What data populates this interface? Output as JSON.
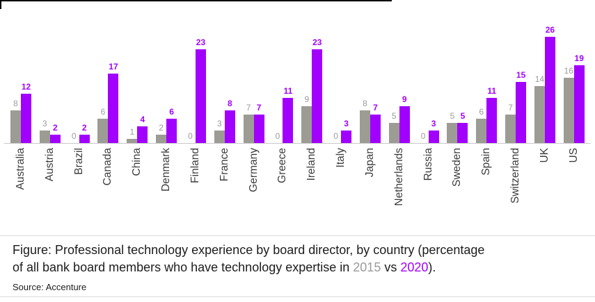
{
  "chart_data": {
    "type": "bar",
    "title": "",
    "xlabel": "",
    "ylabel": "",
    "categories": [
      "Australia",
      "Austria",
      "Brazil",
      "Canada",
      "China",
      "Denmark",
      "Finland",
      "France",
      "Germany",
      "Greece",
      "Ireland",
      "Italy",
      "Japan",
      "Netherlands",
      "Russia",
      "Sweden",
      "Spain",
      "Switzerland",
      "UK",
      "US"
    ],
    "series": [
      {
        "name": "2015",
        "color": "#9c9c94",
        "label_color": "#9b9b9b",
        "values": [
          8,
          3,
          0,
          6,
          1,
          2,
          0,
          3,
          7,
          0,
          9,
          0,
          8,
          5,
          0,
          5,
          6,
          7,
          14,
          16
        ]
      },
      {
        "name": "2020",
        "color": "#a100ff",
        "label_color": "#a100ff",
        "values": [
          12,
          2,
          2,
          17,
          4,
          6,
          23,
          8,
          7,
          11,
          23,
          3,
          7,
          9,
          3,
          5,
          11,
          15,
          26,
          19
        ]
      }
    ],
    "ylim": [
      0,
      26
    ],
    "grid": false,
    "legend_position": "none",
    "value_labels": true,
    "x_tick_rotation": 90
  },
  "caption": {
    "line1": "Figure: Professional technology experience by board director, by country (percentage",
    "line2_prefix": "of all bank board members who have technology expertise in ",
    "year_2015": "2015",
    "separator": " vs ",
    "year_2020": "2020",
    "suffix": ")."
  },
  "source": "Source: Accenture",
  "colors": {
    "accent_purple": "#a100ff",
    "bar_gray": "#9c9c94",
    "label_gray": "#9b9b9b",
    "text_dark": "#1c1c1c",
    "axis_line": "#c9c9c9",
    "divider": "#dadada"
  }
}
